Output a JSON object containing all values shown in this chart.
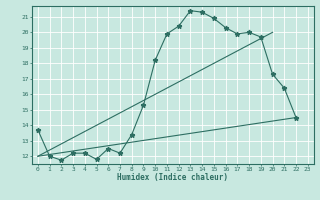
{
  "title": "",
  "xlabel": "Humidex (Indice chaleur)",
  "ylabel": "",
  "bg_color": "#c8e8e0",
  "line_color": "#2d6e62",
  "grid_color": "#ffffff",
  "xlim": [
    -0.5,
    23.5
  ],
  "ylim": [
    11.5,
    21.7
  ],
  "xticks": [
    0,
    1,
    2,
    3,
    4,
    5,
    6,
    7,
    8,
    9,
    10,
    11,
    12,
    13,
    14,
    15,
    16,
    17,
    18,
    19,
    20,
    21,
    22,
    23
  ],
  "yticks": [
    12,
    13,
    14,
    15,
    16,
    17,
    18,
    19,
    20,
    21
  ],
  "line1_x": [
    0,
    1,
    2,
    3,
    4,
    5,
    6,
    7,
    8,
    9,
    10,
    11,
    12,
    13,
    14,
    15,
    16,
    17,
    18,
    19,
    20,
    21,
    22
  ],
  "line1_y": [
    13.7,
    12.0,
    11.75,
    12.2,
    12.2,
    11.8,
    12.5,
    12.2,
    13.4,
    15.3,
    18.2,
    19.9,
    20.4,
    21.4,
    21.3,
    20.9,
    20.3,
    19.9,
    20.0,
    19.7,
    17.3,
    16.4,
    14.5
  ],
  "line2_x": [
    0,
    20
  ],
  "line2_y": [
    12.0,
    20.0
  ],
  "line3_x": [
    0,
    22
  ],
  "line3_y": [
    12.0,
    14.5
  ],
  "marker": "*",
  "markersize": 3.5,
  "linewidth": 0.8
}
